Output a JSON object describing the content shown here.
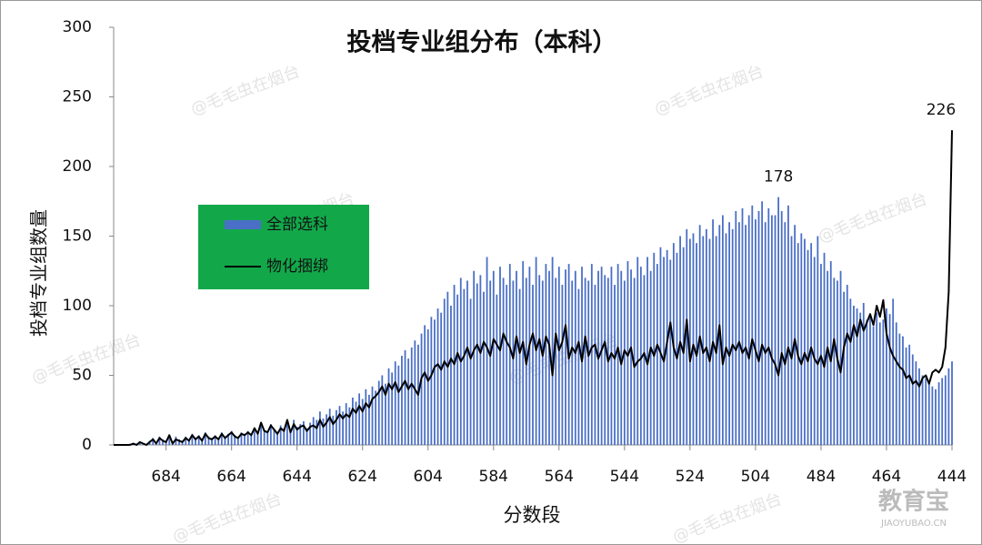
{
  "chart_data": {
    "type": "bar-line",
    "title": "投档专业组分布（本科）",
    "x_label": "分数段",
    "y_label": "投档专业组数量",
    "watermark": "@毛毛虫在烟台",
    "logo": "教育宝",
    "logo_sub": "JIAOYUBAO.CN",
    "xlim": [
      700,
      444
    ],
    "xticks": [
      684,
      664,
      644,
      624,
      604,
      584,
      564,
      544,
      524,
      504,
      484,
      464,
      444
    ],
    "ylim": [
      0,
      300
    ],
    "yticks": [
      0,
      50,
      100,
      150,
      200,
      250,
      300
    ],
    "x": [
      700,
      699,
      698,
      697,
      696,
      695,
      694,
      693,
      692,
      691,
      690,
      689,
      688,
      687,
      686,
      685,
      684,
      683,
      682,
      681,
      680,
      679,
      678,
      677,
      676,
      675,
      674,
      673,
      672,
      671,
      670,
      669,
      668,
      667,
      666,
      665,
      664,
      663,
      662,
      661,
      660,
      659,
      658,
      657,
      656,
      655,
      654,
      653,
      652,
      651,
      650,
      649,
      648,
      647,
      646,
      645,
      644,
      643,
      642,
      641,
      640,
      639,
      638,
      637,
      636,
      635,
      634,
      633,
      632,
      631,
      630,
      629,
      628,
      627,
      626,
      625,
      624,
      623,
      622,
      621,
      620,
      619,
      618,
      617,
      616,
      615,
      614,
      613,
      612,
      611,
      610,
      609,
      608,
      607,
      606,
      605,
      604,
      603,
      602,
      601,
      600,
      599,
      598,
      597,
      596,
      595,
      594,
      593,
      592,
      591,
      590,
      589,
      588,
      587,
      586,
      585,
      584,
      583,
      582,
      581,
      580,
      579,
      578,
      577,
      576,
      575,
      574,
      573,
      572,
      571,
      570,
      569,
      568,
      567,
      566,
      565,
      564,
      563,
      562,
      561,
      560,
      559,
      558,
      557,
      556,
      555,
      554,
      553,
      552,
      551,
      550,
      549,
      548,
      547,
      546,
      545,
      544,
      543,
      542,
      541,
      540,
      539,
      538,
      537,
      536,
      535,
      534,
      533,
      532,
      531,
      530,
      529,
      528,
      527,
      526,
      525,
      524,
      523,
      522,
      521,
      520,
      519,
      518,
      517,
      516,
      515,
      514,
      513,
      512,
      511,
      510,
      509,
      508,
      507,
      506,
      505,
      504,
      503,
      502,
      501,
      500,
      499,
      498,
      497,
      496,
      495,
      494,
      493,
      492,
      491,
      490,
      489,
      488,
      487,
      486,
      485,
      484,
      483,
      482,
      481,
      480,
      479,
      478,
      477,
      476,
      475,
      474,
      473,
      472,
      471,
      470,
      469,
      468,
      467,
      466,
      465,
      464,
      463,
      462,
      461,
      460,
      459,
      458,
      457,
      456,
      455,
      454,
      453,
      452,
      451,
      450,
      449,
      448,
      447,
      446,
      445,
      444
    ],
    "series": [
      {
        "name": "全部选科",
        "kind": "bar",
        "color": "#4a6fc6",
        "values": [
          0,
          0,
          0,
          0,
          0,
          1,
          0,
          1,
          2,
          1,
          0,
          3,
          5,
          2,
          6,
          4,
          3,
          5,
          2,
          6,
          4,
          3,
          6,
          4,
          8,
          5,
          7,
          4,
          9,
          6,
          5,
          7,
          5,
          9,
          6,
          8,
          10,
          7,
          6,
          9,
          8,
          10,
          8,
          12,
          9,
          14,
          11,
          10,
          15,
          12,
          9,
          14,
          12,
          16,
          11,
          18,
          13,
          15,
          17,
          12,
          16,
          20,
          18,
          24,
          19,
          22,
          26,
          21,
          25,
          28,
          24,
          30,
          27,
          34,
          31,
          37,
          33,
          40,
          36,
          42,
          39,
          46,
          50,
          44,
          55,
          52,
          60,
          57,
          64,
          68,
          62,
          70,
          75,
          72,
          80,
          86,
          83,
          92,
          90,
          98,
          95,
          105,
          110,
          100,
          115,
          108,
          120,
          112,
          118,
          105,
          125,
          116,
          122,
          110,
          135,
          118,
          125,
          108,
          128,
          120,
          115,
          130,
          118,
          125,
          112,
          132,
          120,
          128,
          115,
          135,
          122,
          118,
          130,
          125,
          135,
          120,
          128,
          115,
          126,
          130,
          118,
          125,
          112,
          128,
          120,
          118,
          130,
          115,
          125,
          128,
          122,
          120,
          128,
          115,
          130,
          125,
          118,
          132,
          126,
          120,
          135,
          128,
          122,
          135,
          125,
          138,
          130,
          142,
          135,
          140,
          133,
          145,
          138,
          150,
          142,
          155,
          148,
          152,
          145,
          158,
          150,
          155,
          148,
          162,
          150,
          158,
          165,
          152,
          160,
          155,
          168,
          160,
          170,
          158,
          165,
          172,
          162,
          168,
          175,
          160,
          170,
          165,
          165,
          178,
          168,
          160,
          172,
          150,
          158,
          145,
          152,
          148,
          140,
          145,
          135,
          150,
          130,
          138,
          125,
          132,
          120,
          118,
          125,
          110,
          115,
          105,
          100,
          98,
          95,
          102,
          90,
          92,
          85,
          95,
          88,
          90,
          98,
          94,
          105,
          88,
          80,
          78,
          70,
          72,
          65,
          60,
          55,
          50,
          48,
          45,
          42,
          40,
          45,
          48,
          50,
          55,
          60
        ]
      },
      {
        "name": "物化捆绑",
        "kind": "line",
        "color": "#000000",
        "values": [
          0,
          0,
          0,
          0,
          0,
          0,
          1,
          0,
          2,
          1,
          0,
          2,
          4,
          1,
          5,
          3,
          2,
          7,
          1,
          4,
          3,
          2,
          5,
          3,
          7,
          4,
          6,
          3,
          8,
          5,
          4,
          6,
          4,
          8,
          5,
          7,
          9,
          6,
          5,
          8,
          7,
          9,
          7,
          12,
          8,
          16,
          10,
          9,
          14,
          11,
          8,
          12,
          10,
          18,
          9,
          15,
          11,
          13,
          14,
          10,
          13,
          14,
          12,
          18,
          13,
          16,
          20,
          15,
          18,
          22,
          19,
          22,
          20,
          26,
          23,
          28,
          24,
          30,
          27,
          33,
          35,
          38,
          42,
          36,
          44,
          40,
          45,
          38,
          42,
          46,
          40,
          44,
          40,
          36,
          48,
          52,
          46,
          50,
          56,
          58,
          54,
          60,
          56,
          62,
          58,
          66,
          60,
          64,
          70,
          62,
          68,
          72,
          66,
          74,
          70,
          64,
          76,
          72,
          68,
          80,
          74,
          70,
          62,
          78,
          66,
          74,
          58,
          72,
          80,
          68,
          76,
          64,
          78,
          72,
          50,
          80,
          68,
          74,
          86,
          62,
          70,
          66,
          74,
          60,
          78,
          64,
          70,
          72,
          62,
          68,
          74,
          60,
          66,
          62,
          70,
          58,
          68,
          64,
          70,
          56,
          60,
          62,
          66,
          58,
          70,
          64,
          72,
          66,
          60,
          74,
          88,
          70,
          62,
          74,
          66,
          90,
          60,
          72,
          64,
          78,
          66,
          70,
          60,
          74,
          66,
          86,
          58,
          70,
          64,
          72,
          68,
          74,
          66,
          70,
          62,
          76,
          68,
          60,
          72,
          66,
          70,
          62,
          58,
          50,
          66,
          58,
          70,
          62,
          76,
          64,
          58,
          66,
          60,
          70,
          62,
          58,
          64,
          56,
          70,
          60,
          76,
          62,
          52,
          70,
          80,
          74,
          86,
          78,
          90,
          82,
          88,
          94,
          86,
          100,
          92,
          104,
          80,
          70,
          64,
          60,
          56,
          54,
          48,
          50,
          44,
          46,
          42,
          48,
          50,
          44,
          52,
          54,
          52,
          56,
          70,
          110,
          226
        ]
      }
    ],
    "legend": {
      "position": "upper-left",
      "background": "#12a84a"
    }
  }
}
